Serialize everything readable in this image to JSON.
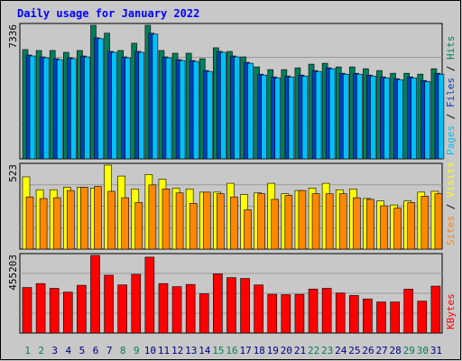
{
  "chart_data": [
    {
      "type": "bar",
      "title": "Daily usage for January 2022",
      "categories": [
        "1",
        "2",
        "3",
        "4",
        "5",
        "6",
        "7",
        "8",
        "9",
        "10",
        "11",
        "12",
        "13",
        "14",
        "15",
        "16",
        "17",
        "18",
        "19",
        "20",
        "21",
        "22",
        "23",
        "24",
        "25",
        "26",
        "27",
        "28",
        "29",
        "30",
        "31"
      ],
      "weekend_days": [
        "1",
        "2",
        "8",
        "9",
        "15",
        "16",
        "22",
        "23",
        "29",
        "30"
      ],
      "max_label": "7336",
      "ylim": [
        0,
        7336
      ],
      "series": [
        {
          "name": "Hits",
          "color": "#00805c",
          "values": [
            6000,
            5950,
            5950,
            5850,
            5950,
            7336,
            6900,
            5950,
            6350,
            7336,
            5950,
            5800,
            5800,
            5500,
            6100,
            5900,
            5600,
            5050,
            4900,
            4900,
            5000,
            5200,
            5250,
            5050,
            5050,
            4950,
            4850,
            4700,
            4700,
            4650,
            4950
          ]
        },
        {
          "name": "Files",
          "color": "#0040c0",
          "values": [
            5700,
            5600,
            5500,
            5550,
            5650,
            6650,
            5900,
            5600,
            5900,
            6900,
            5600,
            5450,
            5400,
            4850,
            5900,
            5650,
            5300,
            4650,
            4500,
            4550,
            4600,
            4850,
            5000,
            4700,
            4700,
            4600,
            4500,
            4400,
            4500,
            4300,
            4700
          ]
        },
        {
          "name": "Pages",
          "color": "#00c0f8",
          "values": [
            5650,
            5550,
            5450,
            5500,
            5600,
            6600,
            5850,
            5550,
            5850,
            6850,
            5550,
            5400,
            5350,
            4800,
            5850,
            5600,
            5250,
            4600,
            4450,
            4500,
            4550,
            4800,
            4950,
            4650,
            4650,
            4550,
            4450,
            4350,
            4450,
            4250,
            4650
          ]
        }
      ]
    },
    {
      "type": "bar",
      "max_label": "523",
      "ylim": [
        0,
        523
      ],
      "categories": [
        "1",
        "2",
        "3",
        "4",
        "5",
        "6",
        "7",
        "8",
        "9",
        "10",
        "11",
        "12",
        "13",
        "14",
        "15",
        "16",
        "17",
        "18",
        "19",
        "20",
        "21",
        "22",
        "23",
        "24",
        "25",
        "26",
        "27",
        "28",
        "29",
        "30",
        "31"
      ],
      "series": [
        {
          "name": "Visits",
          "color": "#ffff00",
          "values": [
            450,
            370,
            370,
            385,
            385,
            380,
            523,
            455,
            375,
            465,
            435,
            380,
            375,
            355,
            355,
            410,
            340,
            350,
            410,
            345,
            365,
            380,
            410,
            370,
            375,
            315,
            300,
            275,
            300,
            355,
            360
          ]
        },
        {
          "name": "Sites",
          "color": "#ff8800",
          "values": [
            325,
            315,
            320,
            365,
            385,
            390,
            360,
            320,
            290,
            400,
            375,
            350,
            285,
            355,
            345,
            325,
            245,
            345,
            310,
            335,
            365,
            345,
            345,
            345,
            320,
            310,
            270,
            255,
            290,
            330,
            345
          ]
        }
      ]
    },
    {
      "type": "bar",
      "max_label": "455203",
      "ylim": [
        0,
        455203
      ],
      "categories": [
        "1",
        "2",
        "3",
        "4",
        "5",
        "6",
        "7",
        "8",
        "9",
        "10",
        "11",
        "12",
        "13",
        "14",
        "15",
        "16",
        "17",
        "18",
        "19",
        "20",
        "21",
        "22",
        "23",
        "24",
        "25",
        "26",
        "27",
        "28",
        "29",
        "30",
        "31"
      ],
      "series": [
        {
          "name": "KBytes",
          "color": "#ff0000",
          "values": [
            267000,
            290000,
            262000,
            240000,
            280000,
            455203,
            339000,
            282000,
            344000,
            445000,
            290000,
            272000,
            285000,
            230000,
            347000,
            325000,
            320000,
            282000,
            227000,
            225000,
            227000,
            258000,
            262000,
            235000,
            220000,
            200000,
            182000,
            182000,
            257000,
            187000,
            275000
          ]
        }
      ]
    }
  ]
}
